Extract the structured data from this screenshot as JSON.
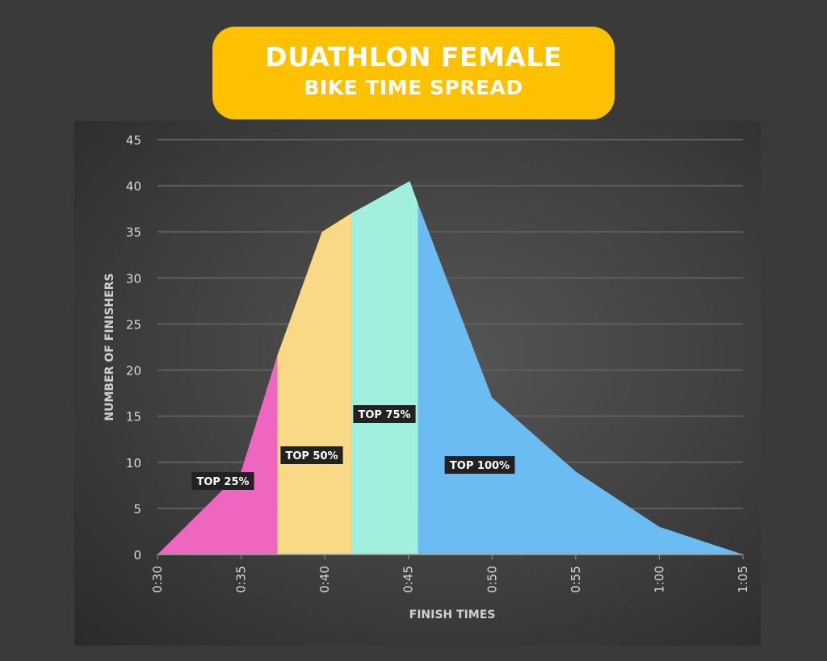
{
  "chart_data": {
    "type": "area",
    "title": "DUATHLON FEMALE",
    "subtitle": "BIKE TIME SPREAD",
    "xlabel": "FINISH TIMES",
    "ylabel": "NUMBER OF FINISHERS",
    "x_ticks": [
      "0:30",
      "0:35",
      "0:40",
      "0:45",
      "0:50",
      "0:55",
      "1:00",
      "1:05"
    ],
    "y_ticks": [
      0,
      5,
      10,
      15,
      20,
      25,
      30,
      35,
      40,
      45
    ],
    "ylim": [
      0,
      45
    ],
    "xlim": [
      "0:30",
      "1:05"
    ],
    "grid": "horizontal",
    "points": [
      {
        "x": "0:30:00",
        "y": 0
      },
      {
        "x": "0:35:00",
        "y": 9
      },
      {
        "x": "0:37:10",
        "y": 21.6
      },
      {
        "x": "0:39:50",
        "y": 35
      },
      {
        "x": "0:41:35",
        "y": 37
      },
      {
        "x": "0:45:05",
        "y": 40.5
      },
      {
        "x": "0:45:35",
        "y": 38
      },
      {
        "x": "0:50:00",
        "y": 17
      },
      {
        "x": "0:55:00",
        "y": 9
      },
      {
        "x": "1:00:00",
        "y": 3
      },
      {
        "x": "1:05:00",
        "y": 0
      }
    ],
    "segments": [
      {
        "label": "TOP 25%",
        "from": "0:30:00",
        "to": "0:37:10",
        "color": "#ee66bf"
      },
      {
        "label": "TOP 50%",
        "from": "0:37:10",
        "to": "0:41:35",
        "color": "#f9d986"
      },
      {
        "label": "TOP 75%",
        "from": "0:41:35",
        "to": "0:45:35",
        "color": "#a0f0dd"
      },
      {
        "label": "TOP 100%",
        "from": "0:45:35",
        "to": "1:05:00",
        "color": "#6bbcf3"
      }
    ]
  }
}
